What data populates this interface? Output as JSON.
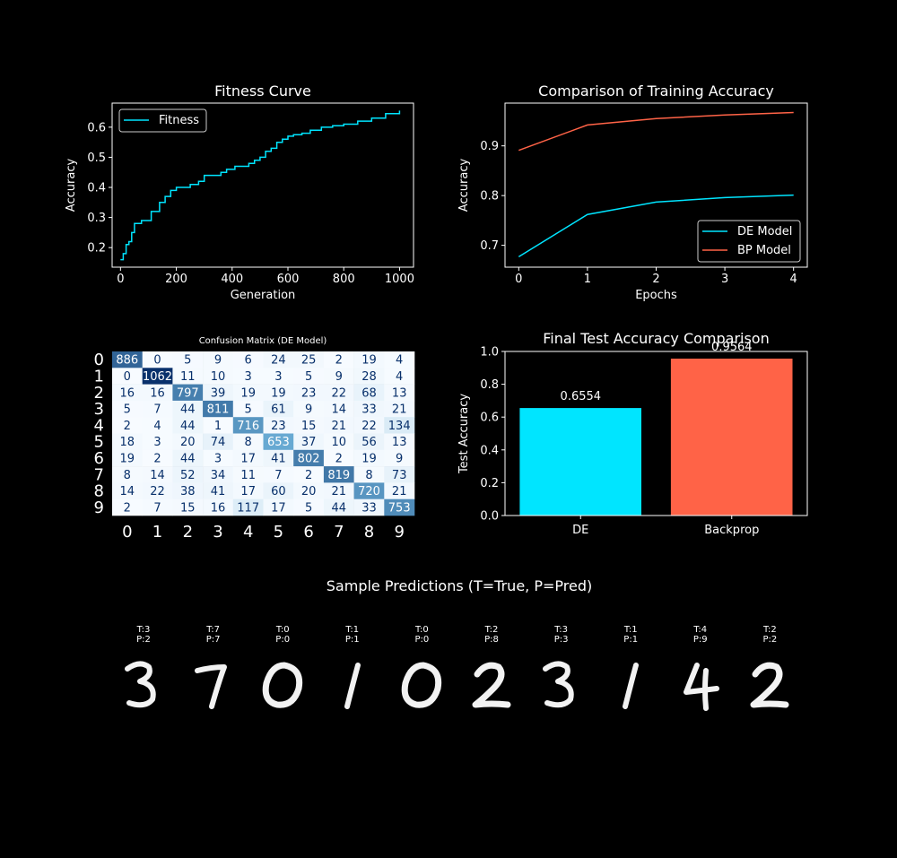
{
  "colors": {
    "background": "#000000",
    "de": "#00e5ff",
    "bp": "#ff6347",
    "cm_low": "#f7fbff",
    "cm_high": "#08306b"
  },
  "chart_data": [
    {
      "type": "line",
      "title": "Fitness Curve",
      "xlabel": "Generation",
      "ylabel": "Accuracy",
      "xlim": [
        -30,
        1050
      ],
      "ylim": [
        0.135,
        0.68
      ],
      "xticks": [
        0,
        200,
        400,
        600,
        800,
        1000
      ],
      "yticks": [
        0.2,
        0.3,
        0.4,
        0.5,
        0.6
      ],
      "legend_position": "top-left",
      "series": [
        {
          "name": "Fitness",
          "step": true,
          "x": [
            0,
            10,
            20,
            30,
            40,
            50,
            60,
            75,
            90,
            110,
            120,
            140,
            160,
            180,
            200,
            230,
            250,
            280,
            300,
            330,
            360,
            380,
            410,
            440,
            460,
            480,
            500,
            520,
            540,
            560,
            580,
            600,
            620,
            650,
            680,
            700,
            720,
            760,
            800,
            850,
            900,
            950,
            1000
          ],
          "values": [
            0.16,
            0.18,
            0.21,
            0.22,
            0.25,
            0.28,
            0.28,
            0.29,
            0.29,
            0.32,
            0.32,
            0.35,
            0.37,
            0.39,
            0.4,
            0.4,
            0.41,
            0.42,
            0.44,
            0.44,
            0.45,
            0.46,
            0.47,
            0.47,
            0.48,
            0.49,
            0.5,
            0.52,
            0.53,
            0.55,
            0.56,
            0.57,
            0.575,
            0.58,
            0.59,
            0.59,
            0.6,
            0.605,
            0.61,
            0.62,
            0.63,
            0.645,
            0.655
          ]
        }
      ]
    },
    {
      "type": "line",
      "title": "Comparison of Training Accuracy",
      "xlabel": "Epochs",
      "ylabel": "Accuracy",
      "xlim": [
        -0.2,
        4.2
      ],
      "ylim": [
        0.656,
        0.986
      ],
      "xticks": [
        0,
        1,
        2,
        3,
        4
      ],
      "yticks": [
        0.7,
        0.8,
        0.9
      ],
      "legend_position": "bottom-right",
      "x": [
        0,
        1,
        2,
        3,
        4
      ],
      "series": [
        {
          "name": "DE Model",
          "values": [
            0.677,
            0.762,
            0.787,
            0.796,
            0.801
          ]
        },
        {
          "name": "BP Model",
          "values": [
            0.891,
            0.942,
            0.955,
            0.962,
            0.967
          ]
        }
      ]
    },
    {
      "type": "heatmap",
      "title": "Confusion Matrix (DE Model)",
      "row_labels": [
        "0",
        "1",
        "2",
        "3",
        "4",
        "5",
        "6",
        "7",
        "8",
        "9"
      ],
      "col_labels": [
        "0",
        "1",
        "2",
        "3",
        "4",
        "5",
        "6",
        "7",
        "8",
        "9"
      ],
      "values": [
        [
          886,
          0,
          5,
          9,
          6,
          24,
          25,
          2,
          19,
          4
        ],
        [
          0,
          1062,
          11,
          10,
          3,
          3,
          5,
          9,
          28,
          4
        ],
        [
          16,
          16,
          797,
          39,
          19,
          19,
          23,
          22,
          68,
          13
        ],
        [
          5,
          7,
          44,
          811,
          5,
          61,
          9,
          14,
          33,
          21
        ],
        [
          2,
          4,
          44,
          1,
          716,
          23,
          15,
          21,
          22,
          134
        ],
        [
          18,
          3,
          20,
          74,
          8,
          653,
          37,
          10,
          56,
          13
        ],
        [
          19,
          2,
          44,
          3,
          17,
          41,
          802,
          2,
          19,
          9
        ],
        [
          8,
          14,
          52,
          34,
          11,
          7,
          2,
          819,
          8,
          73
        ],
        [
          14,
          22,
          38,
          41,
          17,
          60,
          20,
          21,
          720,
          21
        ],
        [
          2,
          7,
          15,
          16,
          117,
          17,
          5,
          44,
          33,
          753
        ]
      ],
      "vmin": 0,
      "vmax": 1062
    },
    {
      "type": "bar",
      "title": "Final Test Accuracy Comparison",
      "xlabel": "",
      "ylabel": "Test Accuracy",
      "ylim": [
        0,
        1.0
      ],
      "yticks": [
        0.0,
        0.2,
        0.4,
        0.6,
        0.8,
        1.0
      ],
      "categories": [
        "DE",
        "Backprop"
      ],
      "values": [
        0.6554,
        0.9564
      ],
      "value_labels": [
        "0.6554",
        "0.9564"
      ]
    }
  ],
  "samples": {
    "title": "Sample Predictions (T=True, P=Pred)",
    "items": [
      {
        "t": "T:3",
        "p": "P:2",
        "glyph": "3"
      },
      {
        "t": "T:7",
        "p": "P:7",
        "glyph": "7"
      },
      {
        "t": "T:0",
        "p": "P:0",
        "glyph": "0"
      },
      {
        "t": "T:1",
        "p": "P:1",
        "glyph": "1"
      },
      {
        "t": "T:0",
        "p": "P:0",
        "glyph": "0"
      },
      {
        "t": "T:2",
        "p": "P:8",
        "glyph": "2"
      },
      {
        "t": "T:3",
        "p": "P:3",
        "glyph": "3"
      },
      {
        "t": "T:1",
        "p": "P:1",
        "glyph": "1"
      },
      {
        "t": "T:4",
        "p": "P:9",
        "glyph": "4"
      },
      {
        "t": "T:2",
        "p": "P:2",
        "glyph": "2"
      }
    ]
  }
}
